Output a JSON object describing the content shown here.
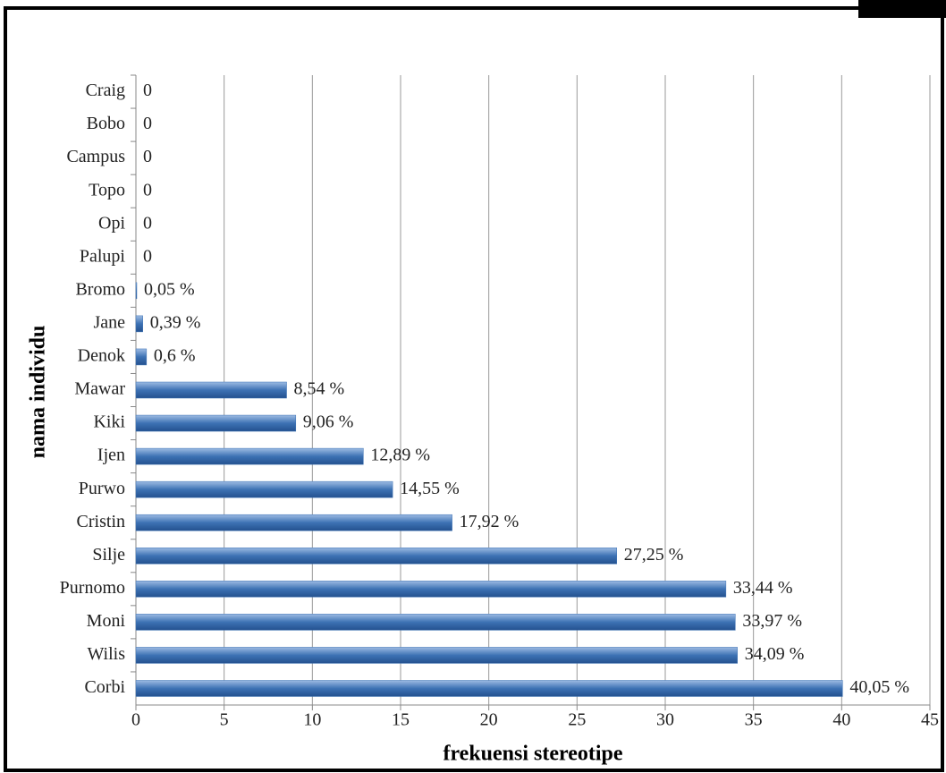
{
  "chart_data": {
    "type": "bar",
    "orientation": "horizontal",
    "x_label": "frekuensi stereotipe",
    "y_label": "nama individu",
    "categories": [
      "Craig",
      "Bobo",
      "Campus",
      "Topo",
      "Opi",
      "Palupi",
      "Bromo",
      "Jane",
      "Denok",
      "Mawar",
      "Kiki",
      "Ijen",
      "Purwo",
      "Cristin",
      "Silje",
      "Purnomo",
      "Moni",
      "Wilis",
      "Corbi"
    ],
    "values": [
      0,
      0,
      0,
      0,
      0,
      0,
      0.05,
      0.39,
      0.6,
      8.54,
      9.06,
      12.89,
      14.55,
      17.92,
      27.25,
      33.44,
      33.97,
      34.09,
      40.05
    ],
    "value_labels": [
      "0",
      "0",
      "0",
      "0",
      "0",
      "0",
      "0,05 %",
      "0,39 %",
      "0,6 %",
      "8,54 %",
      "9,06 %",
      "12,89 %",
      "14,55 %",
      "17,92 %",
      "27,25 %",
      "33,44 %",
      "33,97 %",
      "34,09 %",
      "40,05 %"
    ],
    "color": "#3d72b4",
    "xlim": [
      0,
      45
    ],
    "xticks": [
      0,
      5,
      10,
      15,
      20,
      25,
      30,
      35,
      40,
      45
    ],
    "grid": true
  }
}
